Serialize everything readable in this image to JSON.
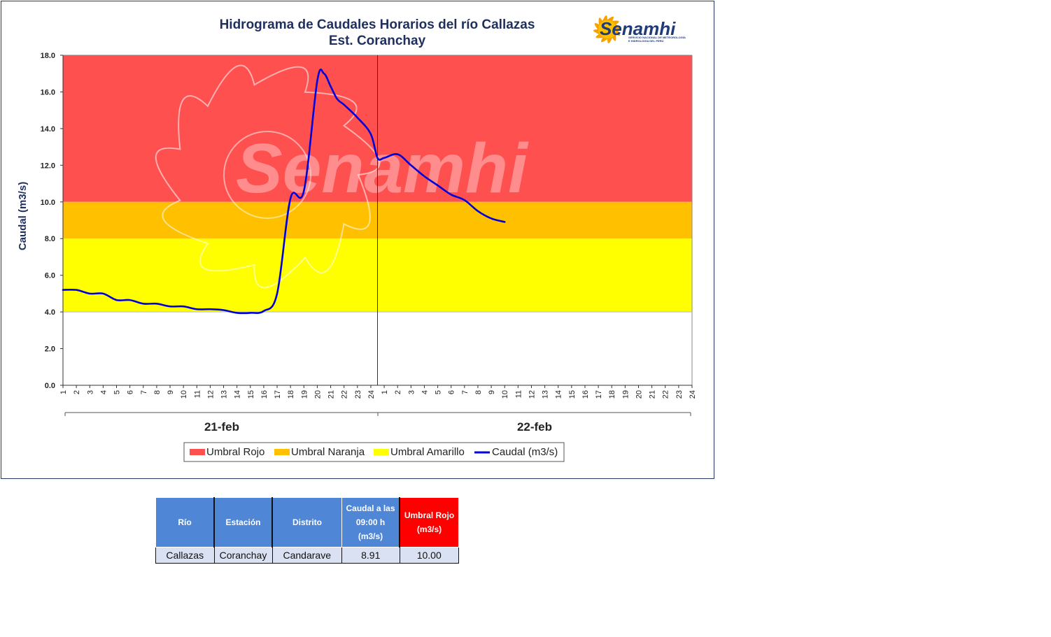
{
  "chart": {
    "title_line1": "Hidrograma de Caudales Horarios del río Callazas",
    "title_line2": "Est. Coranchay",
    "logo_text": "Senamhi",
    "logo_subtitle_line1": "SERVICIO NACIONAL DE METEOROLOGÍA",
    "logo_subtitle_line2": "E HIDROLOGÍA DEL PERÚ",
    "watermark_text": "Senamhi",
    "colors": {
      "rojo": "#ff5050",
      "naranja": "#ffc000",
      "amarillo": "#ffff00",
      "caudal": "#0000dd"
    }
  },
  "chart_data": {
    "type": "line",
    "ylabel": "Caudal (m3/s)",
    "ylim": [
      0,
      18
    ],
    "yticks": [
      "0.0",
      "2.0",
      "4.0",
      "6.0",
      "8.0",
      "10.0",
      "12.0",
      "14.0",
      "16.0",
      "18.0"
    ],
    "days": [
      "21-feb",
      "22-feb"
    ],
    "hour_ticks": [
      "1",
      "2",
      "3",
      "4",
      "5",
      "6",
      "7",
      "8",
      "9",
      "10",
      "11",
      "12",
      "13",
      "14",
      "15",
      "16",
      "17",
      "18",
      "19",
      "20",
      "21",
      "22",
      "23",
      "24"
    ],
    "thresholds": {
      "amarillo": [
        4,
        8
      ],
      "naranja": [
        8,
        10
      ],
      "rojo": [
        10,
        18
      ]
    },
    "legend": [
      "Umbral Rojo",
      "Umbral Naranja",
      "Umbral Amarillo",
      "Caudal (m3/s)"
    ],
    "legend_position": "bottom",
    "series": [
      {
        "name": "Caudal (m3/s)",
        "x": [
          0,
          1,
          2,
          3,
          4,
          5,
          6,
          7,
          8,
          9,
          10,
          11,
          12,
          13,
          14,
          15,
          16,
          17,
          18,
          19,
          19.5,
          20,
          20.5,
          21,
          22,
          23,
          23.5,
          24,
          25,
          26,
          27,
          28,
          29,
          30,
          31,
          32,
          33
        ],
        "y": [
          5.2,
          5.2,
          5.0,
          5.0,
          4.65,
          4.65,
          4.45,
          4.45,
          4.3,
          4.3,
          4.15,
          4.15,
          4.1,
          3.95,
          3.95,
          4.05,
          5.0,
          10.2,
          10.6,
          16.6,
          17.0,
          16.3,
          15.6,
          15.3,
          14.6,
          13.7,
          12.4,
          12.4,
          12.6,
          12.0,
          11.4,
          10.9,
          10.4,
          10.1,
          9.5,
          9.1,
          8.91
        ]
      }
    ]
  },
  "table": {
    "headers": [
      "Río",
      "Estación",
      "Distrito",
      "Caudal a las 09:00 h (m3/s)",
      "Umbral Rojo (m3/s)"
    ],
    "header_caudal_lines": [
      "Caudal a las",
      "09:00 h",
      "(m3/s)"
    ],
    "header_umbral_lines": [
      "Umbral Rojo",
      "(m3/s)"
    ],
    "row": [
      "Callazas",
      "Coranchay",
      "Candarave",
      "8.91",
      "10.00"
    ]
  }
}
